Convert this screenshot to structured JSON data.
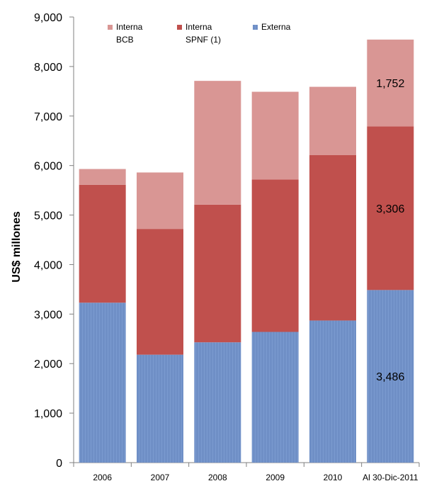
{
  "chart_data": {
    "type": "bar",
    "stacked": true,
    "categories": [
      "2006",
      "2007",
      "2008",
      "2009",
      "2010",
      "Al 30-Dic-2011"
    ],
    "series": [
      {
        "name": "Externa",
        "color": "#6f8fc6",
        "values": [
          3230,
          2180,
          2430,
          2640,
          2870,
          3486
        ]
      },
      {
        "name": "Interna SPNF (1)",
        "color": "#c0504d",
        "values": [
          2380,
          2540,
          2780,
          3080,
          3340,
          3306
        ]
      },
      {
        "name": "Interna BCB",
        "color": "#d99694",
        "values": [
          320,
          1140,
          2500,
          1770,
          1380,
          1752
        ]
      }
    ],
    "legend": [
      {
        "line1": "Interna",
        "line2": "BCB",
        "color": "#d99694"
      },
      {
        "line1": "Interna",
        "line2": "SPNF (1)",
        "color": "#c0504d"
      },
      {
        "line1": "Externa",
        "line2": "",
        "color": "#6f8fc6"
      }
    ],
    "data_labels": [
      {
        "category_index": 5,
        "series_index": 0,
        "text": "3,486"
      },
      {
        "category_index": 5,
        "series_index": 1,
        "text": "3,306"
      },
      {
        "category_index": 5,
        "series_index": 2,
        "text": "1,752"
      }
    ],
    "ylabel": "US$ millones",
    "ylim": [
      0,
      9000
    ],
    "yticks": [
      "0",
      "1,000",
      "2,000",
      "3,000",
      "4,000",
      "5,000",
      "6,000",
      "7,000",
      "8,000",
      "9,000"
    ],
    "legend_position": "top",
    "grid": false
  }
}
